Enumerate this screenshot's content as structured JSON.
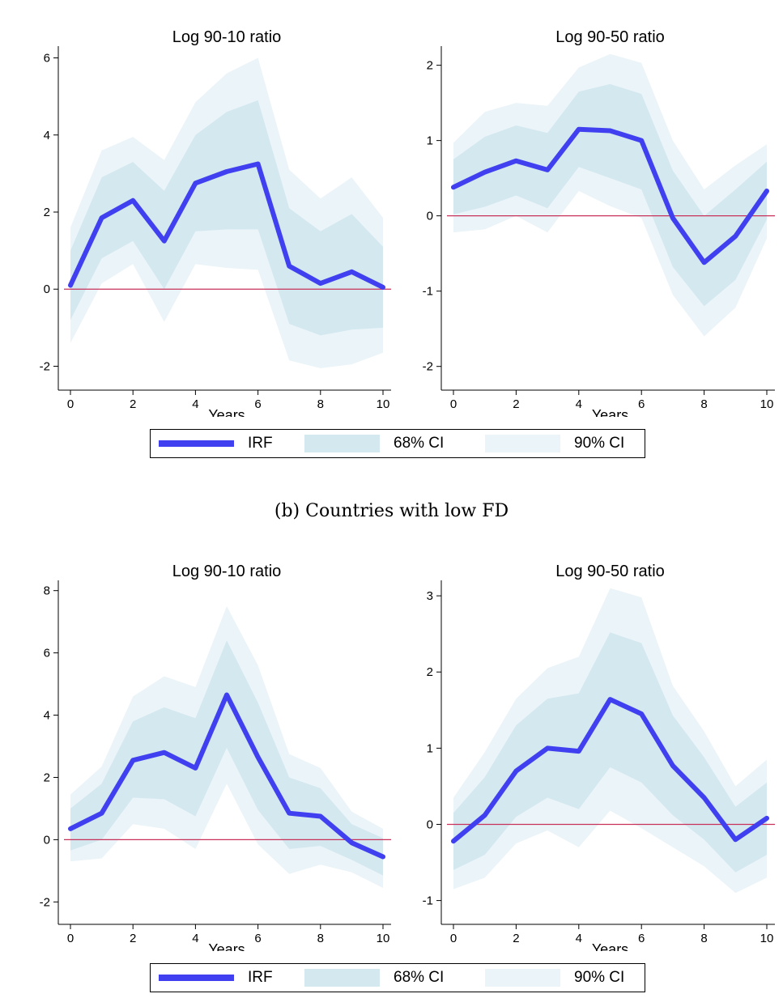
{
  "colors": {
    "irf": "#4040f0",
    "ci68": "#d4e8f0",
    "ci90": "#ebf4f8",
    "zero_line": "#c8325a",
    "axis": "#000000"
  },
  "legend": {
    "irf_label": "IRF",
    "ci68_label": "68% CI",
    "ci90_label": "90% CI"
  },
  "caption_b": "(b) Countries with low FD",
  "chart_data": [
    {
      "type": "line",
      "title": "Log 90-10 ratio",
      "xlabel": "Years",
      "ylabel": "",
      "x": [
        0,
        1,
        2,
        3,
        4,
        5,
        6,
        7,
        8,
        9,
        10
      ],
      "xticks": [
        0,
        2,
        4,
        6,
        8,
        10
      ],
      "yticks": [
        -2,
        0,
        2,
        4,
        6
      ],
      "xlim": [
        0,
        10
      ],
      "ylim": [
        -2.2,
        6.2
      ],
      "series": [
        {
          "role": "irf",
          "values": [
            0.1,
            1.85,
            2.3,
            1.25,
            2.75,
            3.05,
            3.25,
            0.6,
            0.15,
            0.45,
            0.05
          ]
        },
        {
          "role": "ci68",
          "upper": [
            1.0,
            2.9,
            3.3,
            2.55,
            4.0,
            4.6,
            4.9,
            2.1,
            1.5,
            1.95,
            1.1
          ],
          "lower": [
            -0.8,
            0.8,
            1.25,
            0.0,
            1.5,
            1.55,
            1.55,
            -0.9,
            -1.2,
            -1.05,
            -1.0
          ]
        },
        {
          "role": "ci90",
          "upper": [
            1.6,
            3.6,
            3.95,
            3.35,
            4.85,
            5.6,
            6.0,
            3.1,
            2.35,
            2.9,
            1.85
          ],
          "lower": [
            -1.4,
            0.15,
            0.65,
            -0.85,
            0.65,
            0.55,
            0.5,
            -1.85,
            -2.05,
            -1.95,
            -1.65
          ]
        }
      ],
      "grid": false
    },
    {
      "type": "line",
      "title": "Log 90-50 ratio",
      "xlabel": "Years",
      "ylabel": "",
      "x": [
        0,
        1,
        2,
        3,
        4,
        5,
        6,
        7,
        8,
        9,
        10
      ],
      "xticks": [
        0,
        2,
        4,
        6,
        8,
        10
      ],
      "yticks": [
        -2,
        -1,
        0,
        1,
        2
      ],
      "xlim": [
        0,
        10
      ],
      "ylim": [
        -2.1,
        2.2
      ],
      "series": [
        {
          "role": "irf",
          "values": [
            0.38,
            0.58,
            0.73,
            0.61,
            1.15,
            1.13,
            1.0,
            -0.03,
            -0.62,
            -0.27,
            0.33
          ]
        },
        {
          "role": "ci68",
          "upper": [
            0.75,
            1.05,
            1.2,
            1.1,
            1.65,
            1.75,
            1.62,
            0.6,
            0.0,
            0.35,
            0.72
          ],
          "lower": [
            0.02,
            0.12,
            0.27,
            0.1,
            0.65,
            0.5,
            0.35,
            -0.68,
            -1.2,
            -0.85,
            -0.05
          ]
        },
        {
          "role": "ci90",
          "upper": [
            0.97,
            1.38,
            1.5,
            1.46,
            1.97,
            2.15,
            2.03,
            1.0,
            0.35,
            0.67,
            0.95
          ],
          "lower": [
            -0.22,
            -0.18,
            0.0,
            -0.22,
            0.33,
            0.13,
            -0.03,
            -1.05,
            -1.6,
            -1.22,
            -0.3
          ]
        }
      ],
      "grid": false
    },
    {
      "type": "line",
      "title": "Log 90-10 ratio",
      "xlabel": "Years",
      "ylabel": "",
      "x": [
        0,
        1,
        2,
        3,
        4,
        5,
        6,
        7,
        8,
        9,
        10
      ],
      "xticks": [
        0,
        2,
        4,
        6,
        8,
        10
      ],
      "yticks": [
        -2,
        0,
        2,
        4,
        6,
        8
      ],
      "xlim": [
        0,
        10
      ],
      "ylim": [
        -2.2,
        8.2
      ],
      "series": [
        {
          "role": "irf",
          "values": [
            0.35,
            0.85,
            2.55,
            2.8,
            2.3,
            4.65,
            2.65,
            0.85,
            0.75,
            -0.1,
            -0.55
          ]
        },
        {
          "role": "ci68",
          "upper": [
            1.0,
            1.8,
            3.8,
            4.25,
            3.9,
            6.4,
            4.4,
            2.0,
            1.65,
            0.5,
            0.05
          ],
          "lower": [
            -0.35,
            0.0,
            1.35,
            1.3,
            0.75,
            2.95,
            0.95,
            -0.3,
            -0.2,
            -0.65,
            -1.15
          ]
        },
        {
          "role": "ci90",
          "upper": [
            1.45,
            2.35,
            4.6,
            5.25,
            4.9,
            7.5,
            5.6,
            2.75,
            2.3,
            0.9,
            0.35
          ],
          "lower": [
            -0.7,
            -0.6,
            0.5,
            0.35,
            -0.3,
            1.8,
            -0.15,
            -1.1,
            -0.8,
            -1.05,
            -1.55
          ]
        }
      ],
      "grid": false
    },
    {
      "type": "line",
      "title": "Log 90-50 ratio",
      "xlabel": "Years",
      "ylabel": "",
      "x": [
        0,
        1,
        2,
        3,
        4,
        5,
        6,
        7,
        8,
        9,
        10
      ],
      "xticks": [
        0,
        2,
        4,
        6,
        8,
        10
      ],
      "yticks": [
        -1,
        0,
        1,
        2,
        3
      ],
      "xlim": [
        0,
        10
      ],
      "ylim": [
        -1.1,
        3.15
      ],
      "series": [
        {
          "role": "irf",
          "values": [
            -0.22,
            0.12,
            0.7,
            1.0,
            0.96,
            1.64,
            1.45,
            0.77,
            0.35,
            -0.2,
            0.08
          ]
        },
        {
          "role": "ci68",
          "upper": [
            0.15,
            0.62,
            1.3,
            1.65,
            1.72,
            2.52,
            2.38,
            1.43,
            0.88,
            0.23,
            0.55
          ],
          "lower": [
            -0.6,
            -0.4,
            0.1,
            0.35,
            0.2,
            0.75,
            0.55,
            0.12,
            -0.2,
            -0.63,
            -0.4
          ]
        },
        {
          "role": "ci90",
          "upper": [
            0.35,
            0.95,
            1.65,
            2.05,
            2.2,
            3.1,
            2.98,
            1.82,
            1.22,
            0.5,
            0.85
          ],
          "lower": [
            -0.85,
            -0.7,
            -0.25,
            -0.08,
            -0.3,
            0.18,
            -0.05,
            -0.3,
            -0.55,
            -0.9,
            -0.7
          ]
        }
      ],
      "grid": false
    }
  ]
}
